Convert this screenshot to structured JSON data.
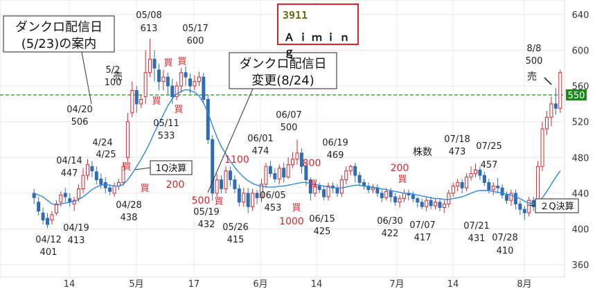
{
  "ticker": {
    "code": "3911",
    "name": "Ａｉｍｉｎｇ"
  },
  "colors": {
    "up": "#d9232a",
    "down": "#2e6db4",
    "ma": "#2e86de",
    "level": "#1a8a1a",
    "red_text": "#d9232a"
  },
  "notes": {
    "stream_announce": "ダンクロ配信日\n(5/23)の案内",
    "stream_change": "ダンクロ配信日\n変更(8/24)",
    "q1": "1Q決算",
    "q2": "２Q決算",
    "shares": "株数"
  },
  "chart_data": {
    "type": "candlestick",
    "ylim": [
      350,
      650
    ],
    "y_ticks": [
      360,
      400,
      440,
      480,
      520,
      560,
      600,
      640
    ],
    "x_ticks": [
      "14",
      "5月",
      "17",
      "6月",
      "14",
      "7月",
      "14",
      "8月"
    ],
    "grid": true,
    "y_axis": "right",
    "level_line": 550,
    "candles": [
      [
        440,
        435,
        445,
        428
      ],
      [
        430,
        420,
        436,
        415
      ],
      [
        418,
        410,
        424,
        405
      ],
      [
        412,
        405,
        418,
        401
      ],
      [
        410,
        416,
        420,
        405
      ],
      [
        418,
        428,
        432,
        415
      ],
      [
        430,
        438,
        442,
        425
      ],
      [
        440,
        436,
        446,
        430
      ],
      [
        434,
        430,
        440,
        425
      ],
      [
        428,
        432,
        436,
        420
      ],
      [
        434,
        445,
        450,
        430
      ],
      [
        445,
        460,
        468,
        440
      ],
      [
        460,
        472,
        478,
        455
      ],
      [
        470,
        465,
        476,
        458
      ],
      [
        464,
        455,
        470,
        450
      ],
      [
        456,
        450,
        462,
        445
      ],
      [
        452,
        446,
        458,
        440
      ],
      [
        446,
        442,
        450,
        438
      ],
      [
        440,
        448,
        452,
        436
      ],
      [
        448,
        452,
        456,
        444
      ],
      [
        452,
        470,
        475,
        448
      ],
      [
        480,
        520,
        530,
        475
      ],
      [
        530,
        555,
        565,
        525
      ],
      [
        555,
        540,
        560,
        530
      ],
      [
        540,
        545,
        550,
        535
      ],
      [
        548,
        575,
        600,
        540
      ],
      [
        575,
        590,
        613,
        570
      ],
      [
        590,
        580,
        600,
        565
      ],
      [
        578,
        565,
        585,
        555
      ],
      [
        565,
        570,
        578,
        555
      ],
      [
        570,
        560,
        575,
        550
      ],
      [
        560,
        548,
        568,
        540
      ],
      [
        548,
        560,
        565,
        544
      ],
      [
        560,
        575,
        580,
        552
      ],
      [
        575,
        570,
        582,
        560
      ],
      [
        568,
        560,
        574,
        552
      ],
      [
        560,
        565,
        572,
        555
      ],
      [
        565,
        570,
        576,
        560
      ],
      [
        570,
        545,
        575,
        540
      ],
      [
        545,
        500,
        550,
        495
      ],
      [
        500,
        440,
        505,
        432
      ],
      [
        440,
        455,
        462,
        436
      ],
      [
        455,
        445,
        460,
        440
      ],
      [
        445,
        465,
        470,
        440
      ],
      [
        465,
        455,
        470,
        448
      ],
      [
        455,
        445,
        460,
        440
      ],
      [
        445,
        430,
        450,
        425
      ],
      [
        430,
        440,
        446,
        425
      ],
      [
        440,
        425,
        446,
        418
      ],
      [
        425,
        440,
        445,
        420
      ],
      [
        440,
        435,
        444,
        428
      ],
      [
        435,
        450,
        456,
        430
      ],
      [
        450,
        470,
        474,
        446
      ],
      [
        470,
        462,
        476,
        458
      ],
      [
        462,
        456,
        468,
        452
      ],
      [
        456,
        468,
        472,
        450
      ],
      [
        468,
        458,
        474,
        452
      ],
      [
        458,
        472,
        480,
        456
      ],
      [
        472,
        478,
        486,
        468
      ],
      [
        478,
        485,
        500,
        472
      ],
      [
        485,
        470,
        490,
        462
      ],
      [
        470,
        455,
        474,
        448
      ],
      [
        455,
        440,
        458,
        432
      ],
      [
        440,
        448,
        452,
        436
      ],
      [
        448,
        444,
        452,
        440
      ],
      [
        444,
        436,
        448,
        432
      ],
      [
        436,
        448,
        452,
        432
      ],
      [
        448,
        446,
        452,
        440
      ],
      [
        446,
        440,
        450,
        436
      ],
      [
        440,
        455,
        460,
        436
      ],
      [
        455,
        465,
        470,
        450
      ],
      [
        465,
        470,
        472,
        460
      ],
      [
        470,
        460,
        474,
        452
      ],
      [
        460,
        452,
        464,
        448
      ],
      [
        452,
        448,
        456,
        444
      ],
      [
        448,
        444,
        452,
        440
      ],
      [
        444,
        446,
        450,
        440
      ],
      [
        446,
        440,
        450,
        436
      ],
      [
        440,
        435,
        444,
        430
      ],
      [
        435,
        442,
        446,
        432
      ],
      [
        442,
        436,
        446,
        430
      ],
      [
        436,
        430,
        440,
        426
      ],
      [
        430,
        434,
        438,
        424
      ],
      [
        434,
        440,
        444,
        430
      ],
      [
        440,
        438,
        444,
        432
      ],
      [
        438,
        434,
        442,
        430
      ],
      [
        434,
        430,
        436,
        424
      ],
      [
        430,
        425,
        434,
        422
      ],
      [
        425,
        432,
        436,
        420
      ],
      [
        432,
        426,
        436,
        422
      ],
      [
        426,
        430,
        434,
        422
      ],
      [
        430,
        424,
        434,
        420
      ],
      [
        424,
        428,
        432,
        418
      ],
      [
        428,
        440,
        444,
        424
      ],
      [
        440,
        448,
        452,
        436
      ],
      [
        448,
        452,
        456,
        442
      ],
      [
        452,
        446,
        456,
        440
      ],
      [
        446,
        458,
        462,
        442
      ],
      [
        458,
        462,
        470,
        454
      ],
      [
        462,
        466,
        473,
        458
      ],
      [
        466,
        460,
        470,
        455
      ],
      [
        460,
        452,
        464,
        448
      ],
      [
        452,
        444,
        456,
        440
      ],
      [
        444,
        448,
        452,
        438
      ],
      [
        448,
        446,
        457,
        440
      ],
      [
        446,
        438,
        450,
        434
      ],
      [
        438,
        432,
        442,
        428
      ],
      [
        432,
        440,
        444,
        426
      ],
      [
        440,
        428,
        444,
        422
      ],
      [
        428,
        422,
        432,
        416
      ],
      [
        422,
        418,
        426,
        410
      ],
      [
        418,
        432,
        436,
        414
      ],
      [
        432,
        425,
        436,
        420
      ],
      [
        425,
        470,
        476,
        420
      ],
      [
        470,
        512,
        520,
        465
      ],
      [
        512,
        525,
        532,
        505
      ],
      [
        525,
        540,
        548,
        515
      ],
      [
        540,
        535,
        558,
        528
      ],
      [
        535,
        575,
        578,
        530
      ]
    ],
    "ma": [
      440,
      438,
      436,
      432,
      428,
      427,
      428,
      429,
      430,
      431,
      433,
      436,
      440,
      444,
      447,
      449,
      450,
      449,
      448,
      448,
      450,
      455,
      462,
      470,
      478,
      487,
      497,
      508,
      518,
      528,
      538,
      546,
      551,
      554,
      556,
      555,
      553,
      549,
      541,
      530,
      516,
      503,
      492,
      484,
      476,
      469,
      463,
      458,
      454,
      451,
      449,
      448,
      447,
      447,
      447,
      448,
      448,
      449,
      450,
      451,
      452,
      452,
      451,
      450,
      449,
      448,
      447,
      446,
      446,
      446,
      447,
      448,
      449,
      449,
      448,
      447,
      447,
      446,
      445,
      444,
      443,
      442,
      441,
      440,
      440,
      439,
      438,
      437,
      436,
      435,
      434,
      434,
      433,
      433,
      434,
      435,
      436,
      438,
      440,
      442,
      443,
      443,
      443,
      442,
      441,
      440,
      439,
      438,
      436,
      434,
      431,
      429,
      428,
      430,
      435,
      442,
      450,
      458,
      465
    ]
  },
  "annotations": {
    "price_labels": [
      {
        "date": "04/12",
        "price": "401"
      },
      {
        "date": "04/14",
        "price": "447"
      },
      {
        "date": "04/19",
        "price": "413"
      },
      {
        "date": "04/20",
        "price": "506"
      },
      {
        "date": "4/24",
        "price": ""
      },
      {
        "date": "4/25",
        "price": ""
      },
      {
        "date": "04/28",
        "price": "438"
      },
      {
        "date": "5/2",
        "price": "100"
      },
      {
        "date": "05/08",
        "price": "613"
      },
      {
        "date": "05/11",
        "price": "533"
      },
      {
        "date": "05/17",
        "price": "600"
      },
      {
        "date": "05/19",
        "price": "432"
      },
      {
        "date": "05/26",
        "price": "415"
      },
      {
        "date": "06/01",
        "price": "474"
      },
      {
        "date": "06/05",
        "price": "453"
      },
      {
        "date": "06/07",
        "price": "500"
      },
      {
        "date": "06/15",
        "price": "425"
      },
      {
        "date": "06/19",
        "price": "469"
      },
      {
        "date": "06/30",
        "price": "422"
      },
      {
        "date": "07/07",
        "price": "417"
      },
      {
        "date": "07/18",
        "price": "473"
      },
      {
        "date": "07/21",
        "price": "431"
      },
      {
        "date": "07/25",
        "price": "457"
      },
      {
        "date": "07/28",
        "price": "410"
      },
      {
        "date": "8/8",
        "price": "500"
      }
    ],
    "trade_labels": {
      "buy": "買",
      "sell": "売",
      "q200a": "200",
      "q500": "500",
      "q1100": "1100",
      "q800": "800",
      "q1000": "1000",
      "q200b": "200"
    }
  }
}
